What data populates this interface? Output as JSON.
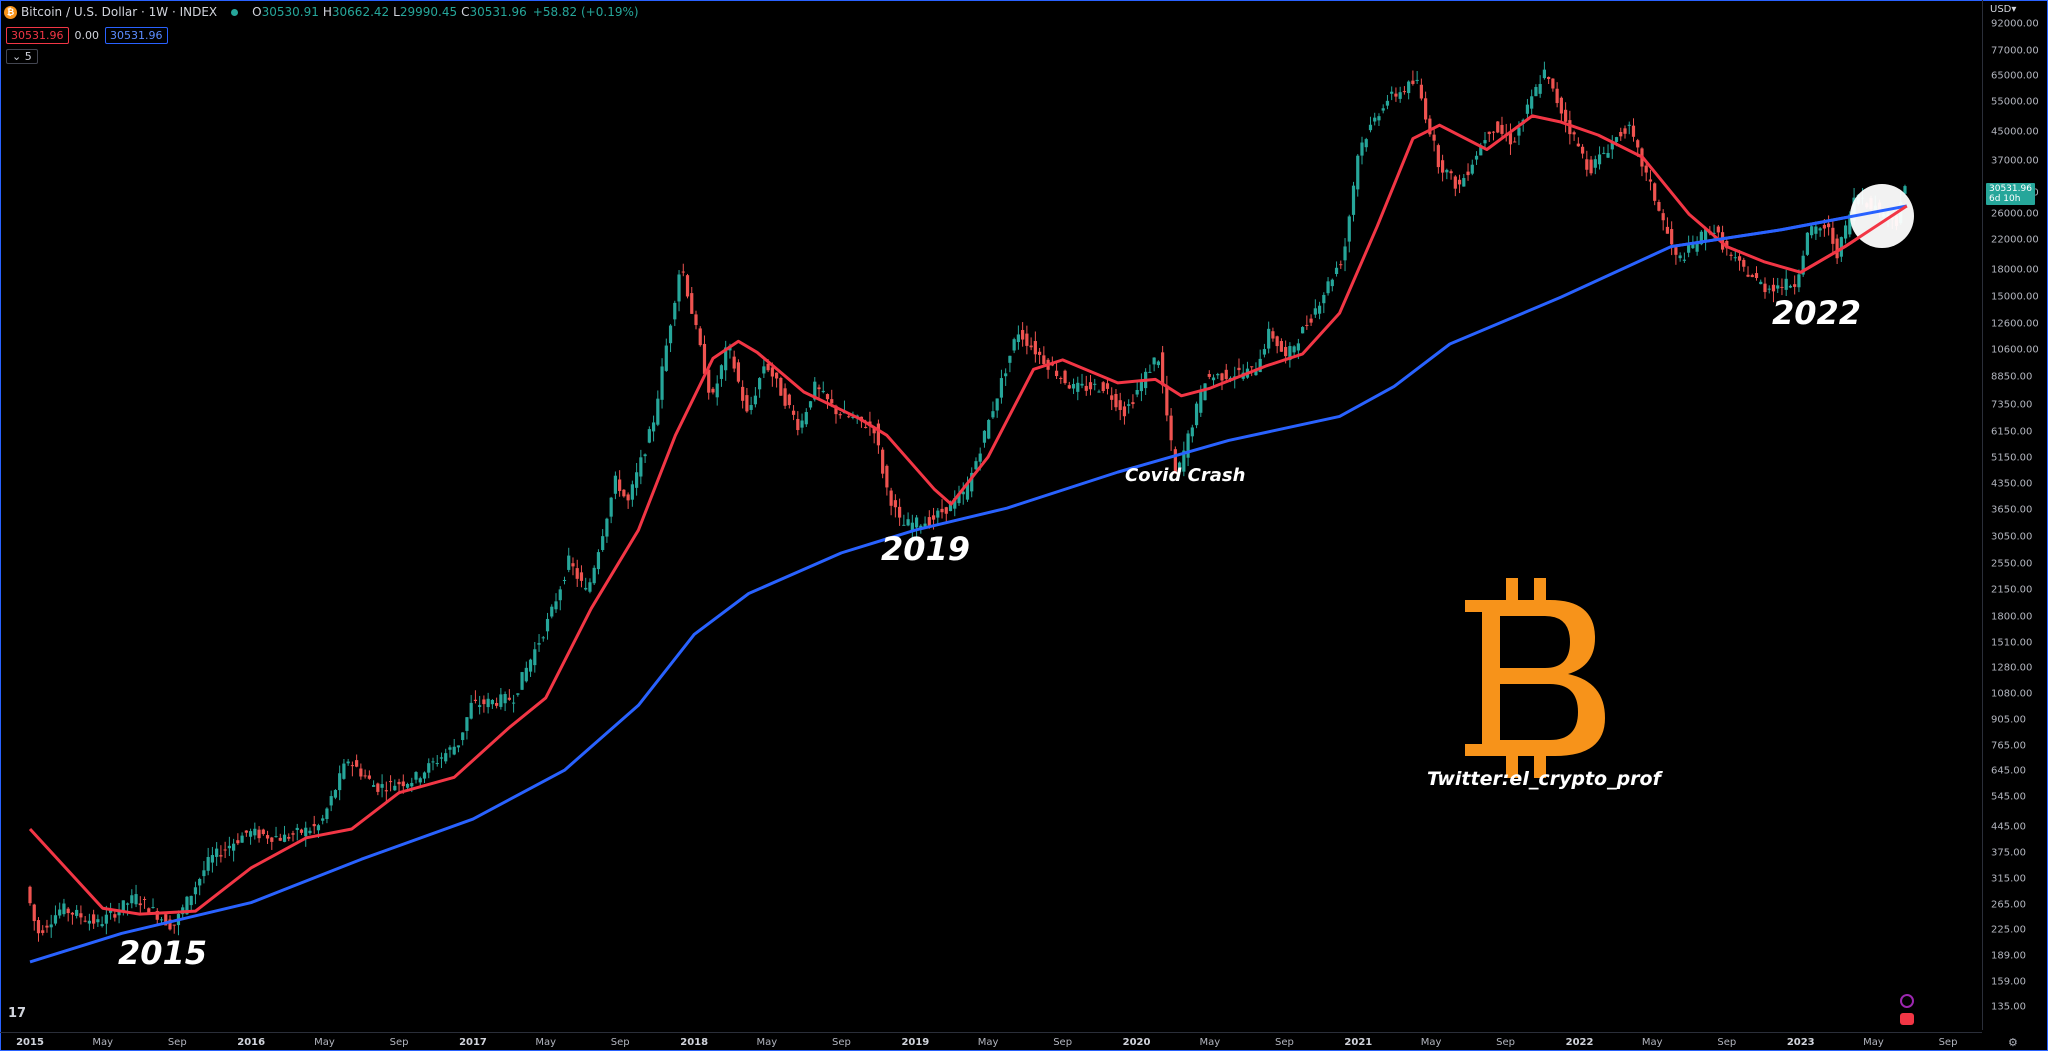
{
  "header": {
    "symbol_icon": "bitcoin-icon",
    "title": "Bitcoin / U.S. Dollar · 1W · INDEX",
    "open_label": "O",
    "open": "30530.91",
    "high_label": "H",
    "high": "30662.42",
    "low_label": "L",
    "low": "29990.45",
    "close_label": "C",
    "close": "30531.96",
    "change": "+58.82 (+0.19%)"
  },
  "indicators": {
    "red_value": "30531.96",
    "mid_value": "0.00",
    "blue_value": "30531.96"
  },
  "collapse": {
    "label": "5"
  },
  "currency": "USD",
  "price_tag": {
    "price": "30531.96",
    "countdown": "6d 10h"
  },
  "annotations": {
    "a2015": "2015",
    "a2019": "2019",
    "a2022": "2022",
    "covid": "Covid Crash",
    "watermark": "Twitter:el_crypto_prof"
  },
  "logo": {
    "glyph": "B",
    "icon": "bitcoin-logo"
  },
  "tradingview_logo": "17",
  "colors": {
    "up": "#26a69a",
    "down": "#ef5350",
    "ma_red": "#f23645",
    "ma_blue": "#2962ff",
    "btc_orange": "#f7931a"
  },
  "chart_data": {
    "type": "candlestick",
    "scale": "log",
    "timeframe": "1W",
    "y_ticks": [
      "92000.00",
      "77000.00",
      "65000.00",
      "55000.00",
      "45000.00",
      "37000.00",
      "30000.00",
      "26000.00",
      "22000.00",
      "18000.00",
      "15000.00",
      "12600.00",
      "10600.00",
      "8850.00",
      "7350.00",
      "6150.00",
      "5150.00",
      "4350.00",
      "3650.00",
      "3050.00",
      "2550.00",
      "2150.00",
      "1800.00",
      "1510.00",
      "1280.00",
      "1080.00",
      "905.00",
      "765.00",
      "645.00",
      "545.00",
      "445.00",
      "375.00",
      "315.00",
      "265.00",
      "225.00",
      "189.00",
      "159.00",
      "135.00"
    ],
    "x_ticks": [
      {
        "label": "2015",
        "year": true
      },
      {
        "label": "May",
        "year": false
      },
      {
        "label": "Sep",
        "year": false
      },
      {
        "label": "2016",
        "year": true
      },
      {
        "label": "May",
        "year": false
      },
      {
        "label": "Sep",
        "year": false
      },
      {
        "label": "2017",
        "year": true
      },
      {
        "label": "May",
        "year": false
      },
      {
        "label": "Sep",
        "year": false
      },
      {
        "label": "2018",
        "year": true
      },
      {
        "label": "May",
        "year": false
      },
      {
        "label": "Sep",
        "year": false
      },
      {
        "label": "2019",
        "year": true
      },
      {
        "label": "May",
        "year": false
      },
      {
        "label": "Sep",
        "year": false
      },
      {
        "label": "2020",
        "year": true
      },
      {
        "label": "May",
        "year": false
      },
      {
        "label": "Sep",
        "year": false
      },
      {
        "label": "2021",
        "year": true
      },
      {
        "label": "May",
        "year": false
      },
      {
        "label": "Sep",
        "year": false
      },
      {
        "label": "2022",
        "year": true
      },
      {
        "label": "May",
        "year": false
      },
      {
        "label": "Sep",
        "year": false
      },
      {
        "label": "2023",
        "year": true
      },
      {
        "label": "May",
        "year": false
      },
      {
        "label": "Sep",
        "year": false
      }
    ],
    "price_path": [
      [
        "2015-01-01",
        300
      ],
      [
        "2015-01-20",
        220
      ],
      [
        "2015-03-01",
        260
      ],
      [
        "2015-05-01",
        235
      ],
      [
        "2015-07-01",
        280
      ],
      [
        "2015-09-01",
        230
      ],
      [
        "2015-11-01",
        360
      ],
      [
        "2016-01-01",
        430
      ],
      [
        "2016-03-01",
        415
      ],
      [
        "2016-05-01",
        450
      ],
      [
        "2016-06-15",
        700
      ],
      [
        "2016-08-01",
        580
      ],
      [
        "2016-10-01",
        610
      ],
      [
        "2016-12-15",
        780
      ],
      [
        "2017-01-05",
        1000
      ],
      [
        "2017-03-15",
        1050
      ],
      [
        "2017-05-15",
        1800
      ],
      [
        "2017-06-15",
        2600
      ],
      [
        "2017-07-15",
        2100
      ],
      [
        "2017-09-01",
        4500
      ],
      [
        "2017-09-20",
        3800
      ],
      [
        "2017-11-01",
        6500
      ],
      [
        "2017-12-17",
        19000
      ],
      [
        "2018-02-06",
        7500
      ],
      [
        "2018-03-05",
        11000
      ],
      [
        "2018-04-06",
        6800
      ],
      [
        "2018-05-05",
        9800
      ],
      [
        "2018-07-01",
        6300
      ],
      [
        "2018-07-25",
        8300
      ],
      [
        "2018-09-01",
        7000
      ],
      [
        "2018-11-01",
        6300
      ],
      [
        "2018-11-20",
        4300
      ],
      [
        "2018-12-15",
        3300
      ],
      [
        "2019-02-01",
        3400
      ],
      [
        "2019-04-01",
        4100
      ],
      [
        "2019-06-26",
        12000
      ],
      [
        "2019-08-01",
        10200
      ],
      [
        "2019-09-25",
        8200
      ],
      [
        "2019-11-15",
        8300
      ],
      [
        "2019-12-20",
        7000
      ],
      [
        "2020-02-12",
        10300
      ],
      [
        "2020-03-13",
        4500
      ],
      [
        "2020-05-01",
        8800
      ],
      [
        "2020-07-20",
        9200
      ],
      [
        "2020-08-15",
        12000
      ],
      [
        "2020-09-10",
        10000
      ],
      [
        "2020-10-20",
        13000
      ],
      [
        "2020-12-15",
        20000
      ],
      [
        "2021-01-08",
        40000
      ],
      [
        "2021-02-20",
        55000
      ],
      [
        "2021-04-14",
        63000
      ],
      [
        "2021-05-20",
        37000
      ],
      [
        "2021-06-22",
        31000
      ],
      [
        "2021-08-15",
        47000
      ],
      [
        "2021-09-20",
        42000
      ],
      [
        "2021-11-10",
        67000
      ],
      [
        "2021-12-20",
        47000
      ],
      [
        "2022-01-24",
        35000
      ],
      [
        "2022-03-28",
        47000
      ],
      [
        "2022-05-12",
        29000
      ],
      [
        "2022-06-18",
        19000
      ],
      [
        "2022-08-14",
        24000
      ],
      [
        "2022-09-15",
        19500
      ],
      [
        "2022-11-09",
        16000
      ],
      [
        "2022-12-30",
        16500
      ],
      [
        "2023-01-20",
        23000
      ],
      [
        "2023-02-20",
        24000
      ],
      [
        "2023-03-10",
        20000
      ],
      [
        "2023-04-10",
        30000
      ],
      [
        "2023-05-15",
        26800
      ],
      [
        "2023-06-15",
        25000
      ],
      [
        "2023-06-25",
        30531
      ]
    ],
    "ma_red": [
      [
        "2015-01-01",
        440
      ],
      [
        "2015-05-01",
        260
      ],
      [
        "2015-07-01",
        250
      ],
      [
        "2015-10-01",
        255
      ],
      [
        "2016-01-01",
        340
      ],
      [
        "2016-04-01",
        415
      ],
      [
        "2016-06-15",
        440
      ],
      [
        "2016-09-01",
        560
      ],
      [
        "2016-12-01",
        620
      ],
      [
        "2017-03-01",
        860
      ],
      [
        "2017-05-01",
        1050
      ],
      [
        "2017-07-15",
        1900
      ],
      [
        "2017-10-01",
        3200
      ],
      [
        "2017-12-01",
        6000
      ],
      [
        "2018-02-01",
        10000
      ],
      [
        "2018-03-15",
        11200
      ],
      [
        "2018-04-15",
        10400
      ],
      [
        "2018-07-01",
        8000
      ],
      [
        "2018-10-01",
        6700
      ],
      [
        "2018-11-15",
        6000
      ],
      [
        "2019-02-01",
        4200
      ],
      [
        "2019-03-01",
        3800
      ],
      [
        "2019-05-01",
        5200
      ],
      [
        "2019-07-15",
        9300
      ],
      [
        "2019-09-01",
        9900
      ],
      [
        "2019-12-01",
        8500
      ],
      [
        "2020-02-01",
        8700
      ],
      [
        "2020-03-15",
        7800
      ],
      [
        "2020-05-01",
        8200
      ],
      [
        "2020-08-01",
        9500
      ],
      [
        "2020-10-01",
        10300
      ],
      [
        "2020-12-01",
        13500
      ],
      [
        "2021-02-01",
        24000
      ],
      [
        "2021-04-01",
        43000
      ],
      [
        "2021-05-15",
        47000
      ],
      [
        "2021-08-01",
        40000
      ],
      [
        "2021-10-15",
        50000
      ],
      [
        "2021-12-01",
        48000
      ],
      [
        "2022-02-01",
        44000
      ],
      [
        "2022-04-15",
        38000
      ],
      [
        "2022-07-01",
        26000
      ],
      [
        "2022-09-01",
        21000
      ],
      [
        "2022-11-01",
        19000
      ],
      [
        "2023-01-01",
        17700
      ],
      [
        "2023-03-15",
        21000
      ],
      [
        "2023-06-25",
        27500
      ]
    ],
    "ma_blue": [
      [
        "2015-01-01",
        182
      ],
      [
        "2015-06-01",
        220
      ],
      [
        "2016-01-01",
        270
      ],
      [
        "2016-07-01",
        360
      ],
      [
        "2017-01-01",
        470
      ],
      [
        "2017-06-01",
        650
      ],
      [
        "2017-10-01",
        1000
      ],
      [
        "2018-01-01",
        1600
      ],
      [
        "2018-04-01",
        2100
      ],
      [
        "2018-09-01",
        2750
      ],
      [
        "2019-01-01",
        3200
      ],
      [
        "2019-06-01",
        3700
      ],
      [
        "2019-12-01",
        4700
      ],
      [
        "2020-06-01",
        5800
      ],
      [
        "2020-12-01",
        6800
      ],
      [
        "2021-03-01",
        8300
      ],
      [
        "2021-06-01",
        11000
      ],
      [
        "2021-12-01",
        15000
      ],
      [
        "2022-06-01",
        21000
      ],
      [
        "2022-12-01",
        23500
      ],
      [
        "2023-06-25",
        27500
      ]
    ]
  }
}
